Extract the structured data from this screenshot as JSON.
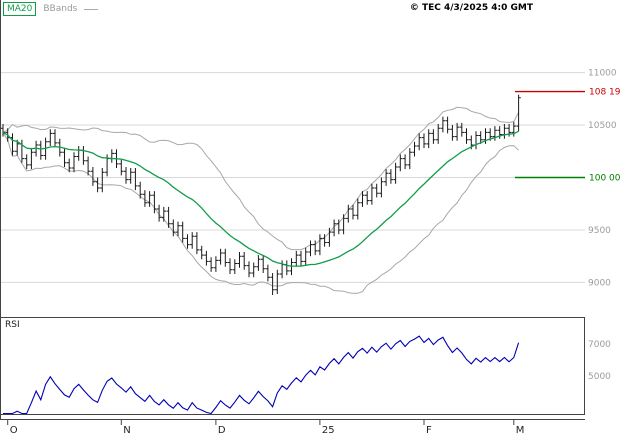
{
  "meta": {
    "legend": {
      "ma_label": "MA20",
      "bbands_label": "BBands"
    },
    "copyright": "© TEC 4/3/2025 4:0 GMT"
  },
  "colors": {
    "ma": "#0f9d49",
    "bbands": "#a8a8a8",
    "bars": "#1a1a1a",
    "rsi": "#0000b4",
    "level_resistance": "#cc0000",
    "level_support": "#008000",
    "grid": "#d8d8d8",
    "axis_text": "#9c9c9c",
    "frame": "#444444",
    "month_text": "#222222"
  },
  "levels": [
    {
      "label": "108 19",
      "value": 10819,
      "color_key": "level_resistance"
    },
    {
      "label": "100 00",
      "value": 10000,
      "color_key": "level_support"
    }
  ],
  "price_axis": {
    "ticks": [
      {
        "label": "11000",
        "value": 11000
      },
      {
        "label": "10500",
        "value": 10500
      },
      {
        "label": "",
        "value": 10000
      },
      {
        "label": "9500",
        "value": 9500
      },
      {
        "label": "9000",
        "value": 9000
      }
    ]
  },
  "rsi_axis": {
    "label": "RSI",
    "ticks": [
      {
        "label": "7000",
        "value": 70
      },
      {
        "label": "5000",
        "value": 50
      }
    ]
  },
  "x_axis": {
    "ticks": [
      {
        "label": "O",
        "index": 1
      },
      {
        "label": "N",
        "index": 25
      },
      {
        "label": "D",
        "index": 45
      },
      {
        "label": "25",
        "index": 67
      },
      {
        "label": "F",
        "index": 89
      },
      {
        "label": "M",
        "index": 108
      }
    ]
  },
  "chart_data": {
    "type": "ohlc",
    "title": "",
    "x_months": [
      "O",
      "N",
      "D",
      "25",
      "F",
      "M"
    ],
    "ylim_price": [
      8680,
      11520
    ],
    "ylim_rsi": [
      25,
      87
    ],
    "indicators": {
      "ma_period": 20,
      "bollinger_period": 20,
      "bollinger_stddev": 2,
      "rsi_period": 14
    },
    "ohlc": [
      [
        10470,
        10510,
        10390,
        10430
      ],
      [
        10430,
        10470,
        10340,
        10380
      ],
      [
        10380,
        10420,
        10210,
        10250
      ],
      [
        10250,
        10360,
        10210,
        10320
      ],
      [
        10320,
        10360,
        10140,
        10180
      ],
      [
        10180,
        10220,
        10080,
        10120
      ],
      [
        10120,
        10280,
        10080,
        10240
      ],
      [
        10240,
        10350,
        10200,
        10310
      ],
      [
        10310,
        10350,
        10170,
        10210
      ],
      [
        10210,
        10380,
        10170,
        10340
      ],
      [
        10340,
        10460,
        10300,
        10420
      ],
      [
        10420,
        10460,
        10290,
        10330
      ],
      [
        10330,
        10370,
        10200,
        10240
      ],
      [
        10240,
        10280,
        10100,
        10140
      ],
      [
        10140,
        10180,
        10050,
        10090
      ],
      [
        10090,
        10240,
        10050,
        10200
      ],
      [
        10200,
        10300,
        10160,
        10260
      ],
      [
        10260,
        10300,
        10120,
        10160
      ],
      [
        10160,
        10200,
        10020,
        10060
      ],
      [
        10060,
        10100,
        9920,
        9960
      ],
      [
        9960,
        10000,
        9860,
        9900
      ],
      [
        9900,
        10090,
        9860,
        10050
      ],
      [
        10050,
        10220,
        10010,
        10180
      ],
      [
        10180,
        10270,
        10140,
        10230
      ],
      [
        10230,
        10270,
        10090,
        10130
      ],
      [
        10130,
        10170,
        10020,
        10060
      ],
      [
        10060,
        10100,
        9940,
        9980
      ],
      [
        9980,
        10090,
        9940,
        10050
      ],
      [
        10050,
        10090,
        9880,
        9920
      ],
      [
        9920,
        9960,
        9800,
        9840
      ],
      [
        9840,
        9880,
        9720,
        9760
      ],
      [
        9760,
        9870,
        9720,
        9830
      ],
      [
        9830,
        9870,
        9660,
        9700
      ],
      [
        9700,
        9740,
        9580,
        9620
      ],
      [
        9620,
        9720,
        9580,
        9680
      ],
      [
        9680,
        9720,
        9520,
        9560
      ],
      [
        9560,
        9600,
        9440,
        9480
      ],
      [
        9480,
        9580,
        9440,
        9540
      ],
      [
        9540,
        9580,
        9380,
        9420
      ],
      [
        9420,
        9460,
        9320,
        9360
      ],
      [
        9360,
        9480,
        9320,
        9440
      ],
      [
        9440,
        9480,
        9270,
        9310
      ],
      [
        9310,
        9350,
        9220,
        9260
      ],
      [
        9260,
        9300,
        9160,
        9200
      ],
      [
        9200,
        9240,
        9100,
        9140
      ],
      [
        9140,
        9250,
        9100,
        9210
      ],
      [
        9210,
        9320,
        9170,
        9280
      ],
      [
        9280,
        9320,
        9150,
        9190
      ],
      [
        9190,
        9230,
        9080,
        9120
      ],
      [
        9120,
        9220,
        9080,
        9180
      ],
      [
        9180,
        9290,
        9140,
        9250
      ],
      [
        9250,
        9290,
        9120,
        9160
      ],
      [
        9160,
        9200,
        9050,
        9090
      ],
      [
        9090,
        9190,
        9050,
        9150
      ],
      [
        9150,
        9260,
        9110,
        9220
      ],
      [
        9220,
        9260,
        9090,
        9130
      ],
      [
        9130,
        9170,
        9010,
        9050
      ],
      [
        9050,
        9090,
        8880,
        8930
      ],
      [
        8930,
        9120,
        8890,
        9080
      ],
      [
        9080,
        9210,
        9040,
        9170
      ],
      [
        9170,
        9210,
        9070,
        9110
      ],
      [
        9110,
        9230,
        9070,
        9190
      ],
      [
        9190,
        9300,
        9150,
        9260
      ],
      [
        9260,
        9300,
        9160,
        9200
      ],
      [
        9200,
        9330,
        9160,
        9290
      ],
      [
        9290,
        9400,
        9250,
        9360
      ],
      [
        9360,
        9400,
        9260,
        9300
      ],
      [
        9300,
        9460,
        9260,
        9420
      ],
      [
        9420,
        9460,
        9340,
        9380
      ],
      [
        9380,
        9520,
        9340,
        9480
      ],
      [
        9480,
        9600,
        9440,
        9560
      ],
      [
        9560,
        9600,
        9460,
        9500
      ],
      [
        9500,
        9650,
        9460,
        9610
      ],
      [
        9610,
        9740,
        9570,
        9700
      ],
      [
        9700,
        9740,
        9600,
        9640
      ],
      [
        9640,
        9800,
        9600,
        9760
      ],
      [
        9760,
        9870,
        9720,
        9830
      ],
      [
        9830,
        9870,
        9740,
        9780
      ],
      [
        9780,
        9940,
        9740,
        9900
      ],
      [
        9900,
        9940,
        9810,
        9850
      ],
      [
        9850,
        10000,
        9810,
        9960
      ],
      [
        9960,
        10080,
        9920,
        10040
      ],
      [
        10040,
        10080,
        9940,
        9980
      ],
      [
        9980,
        10140,
        9940,
        10100
      ],
      [
        10100,
        10220,
        10060,
        10180
      ],
      [
        10180,
        10220,
        10080,
        10120
      ],
      [
        10120,
        10280,
        10080,
        10240
      ],
      [
        10240,
        10340,
        10200,
        10300
      ],
      [
        10300,
        10420,
        10260,
        10380
      ],
      [
        10380,
        10420,
        10280,
        10320
      ],
      [
        10320,
        10460,
        10280,
        10420
      ],
      [
        10420,
        10460,
        10320,
        10360
      ],
      [
        10360,
        10510,
        10320,
        10470
      ],
      [
        10470,
        10580,
        10430,
        10540
      ],
      [
        10540,
        10580,
        10420,
        10460
      ],
      [
        10460,
        10500,
        10350,
        10390
      ],
      [
        10390,
        10520,
        10350,
        10480
      ],
      [
        10480,
        10520,
        10390,
        10430
      ],
      [
        10430,
        10470,
        10320,
        10360
      ],
      [
        10360,
        10400,
        10270,
        10310
      ],
      [
        10310,
        10440,
        10270,
        10400
      ],
      [
        10400,
        10440,
        10320,
        10360
      ],
      [
        10360,
        10470,
        10320,
        10430
      ],
      [
        10430,
        10470,
        10350,
        10390
      ],
      [
        10390,
        10490,
        10350,
        10450
      ],
      [
        10450,
        10490,
        10370,
        10410
      ],
      [
        10410,
        10510,
        10370,
        10470
      ],
      [
        10470,
        10510,
        10390,
        10430
      ],
      [
        10430,
        10530,
        10390,
        10490
      ],
      [
        10490,
        10790,
        10440,
        10760
      ]
    ]
  }
}
